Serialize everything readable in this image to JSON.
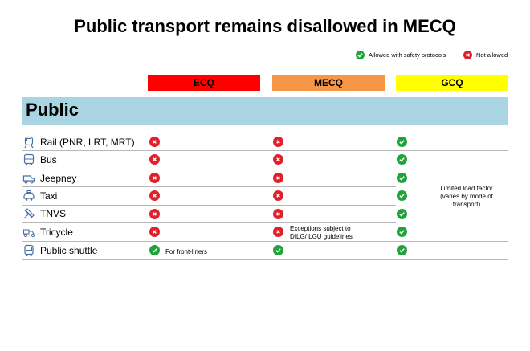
{
  "title": "Public transport remains disallowed in MECQ",
  "legend": {
    "allowed": "Allowed with safety protocols",
    "not_allowed": "Not allowed"
  },
  "columns": [
    {
      "label": "ECQ",
      "color": "#ff0000"
    },
    {
      "label": "MECQ",
      "color": "#f79646"
    },
    {
      "label": "GCQ",
      "color": "#ffff00"
    }
  ],
  "section": "Public",
  "rows": [
    {
      "label": "Rail (PNR, LRT, MRT)",
      "icon": "train-icon",
      "ecq": "not-allowed",
      "mecq": "not-allowed",
      "gcq": "allowed"
    },
    {
      "label": "Bus",
      "icon": "bus-icon",
      "ecq": "not-allowed",
      "mecq": "not-allowed",
      "gcq": "allowed"
    },
    {
      "label": "Jeepney",
      "icon": "jeepney-icon",
      "ecq": "not-allowed",
      "mecq": "not-allowed",
      "gcq": "allowed"
    },
    {
      "label": "Taxi",
      "icon": "taxi-icon",
      "ecq": "not-allowed",
      "mecq": "not-allowed",
      "gcq": "allowed"
    },
    {
      "label": "TNVS",
      "icon": "car-icon",
      "ecq": "not-allowed",
      "mecq": "not-allowed",
      "gcq": "allowed"
    },
    {
      "label": "Tricycle",
      "icon": "tricycle-icon",
      "ecq": "not-allowed",
      "mecq": "not-allowed",
      "gcq": "allowed"
    },
    {
      "label": "Public shuttle",
      "icon": "shuttle-icon",
      "ecq": "allowed",
      "mecq": "allowed",
      "gcq": "allowed"
    }
  ],
  "notes": {
    "front_liners": "For front-liners",
    "exceptions_line1": "Exceptions subject to",
    "exceptions_line2": "DILG/ LGU guidelines",
    "load_line1": "Limited load factor",
    "load_line2": "(varies by mode of",
    "load_line3": "transport)"
  }
}
